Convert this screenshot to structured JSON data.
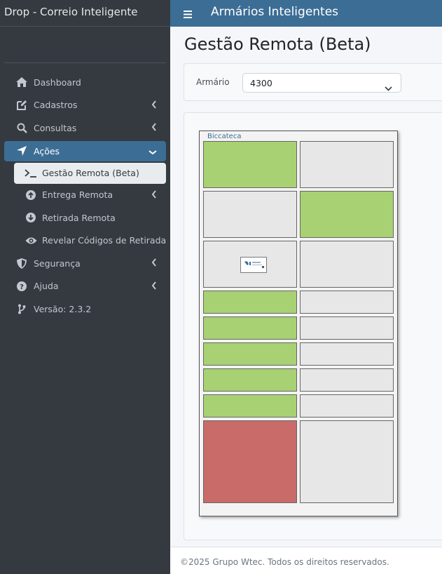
{
  "app": {
    "brand": "Drop - Correio Inteligente",
    "top_title": "Armários Inteligentes"
  },
  "sidebar": {
    "items": [
      {
        "label": "Dashboard",
        "icon": "home-icon"
      },
      {
        "label": "Cadastros",
        "icon": "edit-icon"
      },
      {
        "label": "Consultas",
        "icon": "search-icon"
      },
      {
        "label": "Ações",
        "icon": "location-arrow-icon"
      },
      {
        "label": "Gestão Remota (Beta)",
        "icon": "terminal-icon"
      },
      {
        "label": "Entrega Remota",
        "icon": "arrow-circle-up-icon"
      },
      {
        "label": "Retirada Remota",
        "icon": "arrow-circle-down-icon"
      },
      {
        "label": "Revelar Códigos de Retirada",
        "icon": "eye-icon"
      },
      {
        "label": "Segurança",
        "icon": "shield-icon"
      },
      {
        "label": "Ajuda",
        "icon": "question-circle-icon"
      },
      {
        "label": "Versão: 2.3.2",
        "icon": "code-branch-icon"
      }
    ]
  },
  "page": {
    "title": "Gestão Remota (Beta)"
  },
  "filter": {
    "label": "Armário",
    "selected": "4300"
  },
  "locker": {
    "label": "Biccateca",
    "slots": [
      {
        "state": "occupied",
        "color": "#a8d173"
      },
      {
        "state": "free",
        "color": "#e7e7e7"
      },
      {
        "state": "free",
        "color": "#e7e7e7"
      },
      {
        "state": "occupied",
        "color": "#a8d173"
      },
      {
        "state": "screen",
        "color": "#e7e7e7"
      },
      {
        "state": "free",
        "color": "#e7e7e7"
      },
      {
        "state": "occupied",
        "color": "#a8d173"
      },
      {
        "state": "free",
        "color": "#e7e7e7"
      },
      {
        "state": "occupied",
        "color": "#a8d173"
      },
      {
        "state": "free",
        "color": "#e7e7e7"
      },
      {
        "state": "occupied",
        "color": "#a8d173"
      },
      {
        "state": "free",
        "color": "#e7e7e7"
      },
      {
        "state": "occupied",
        "color": "#a8d173"
      },
      {
        "state": "free",
        "color": "#e7e7e7"
      },
      {
        "state": "occupied",
        "color": "#a8d173"
      },
      {
        "state": "free",
        "color": "#e7e7e7"
      },
      {
        "state": "blocked",
        "color": "#c96b68"
      },
      {
        "state": "free",
        "color": "#e7e7e7"
      }
    ]
  },
  "footer": {
    "text": "©2025 Grupo Wtec. Todos os direitos reservados."
  },
  "colors": {
    "primary": "#3c6d95",
    "sidebar_bg": "#343a40",
    "occupied": "#a8d173",
    "free": "#e7e7e7",
    "blocked": "#c96b68"
  }
}
